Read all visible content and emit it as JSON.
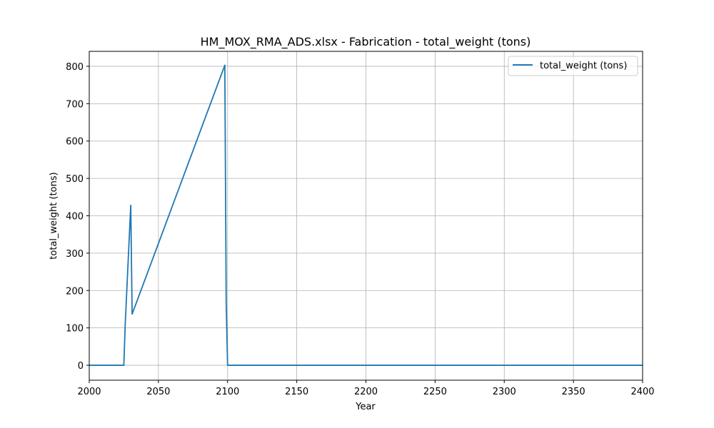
{
  "chart_data": {
    "type": "line",
    "title": "HM_MOX_RMA_ADS.xlsx - Fabrication - total_weight (tons)",
    "xlabel": "Year",
    "ylabel": "total_weight (tons)",
    "xlim": [
      2000,
      2400
    ],
    "ylim": [
      -40,
      840
    ],
    "x_ticks": [
      2000,
      2050,
      2100,
      2150,
      2200,
      2250,
      2300,
      2350,
      2400
    ],
    "y_ticks": [
      0,
      100,
      200,
      300,
      400,
      500,
      600,
      700,
      800
    ],
    "grid": true,
    "legend_position": "top-right",
    "series": [
      {
        "name": "total_weight (tons)",
        "color": "#1f77b4",
        "x": [
          2000,
          2025,
          2026,
          2030,
          2031,
          2098,
          2099,
          2100,
          2400
        ],
        "y": [
          0,
          0,
          110,
          428,
          137,
          803,
          165,
          0,
          0
        ]
      }
    ]
  }
}
